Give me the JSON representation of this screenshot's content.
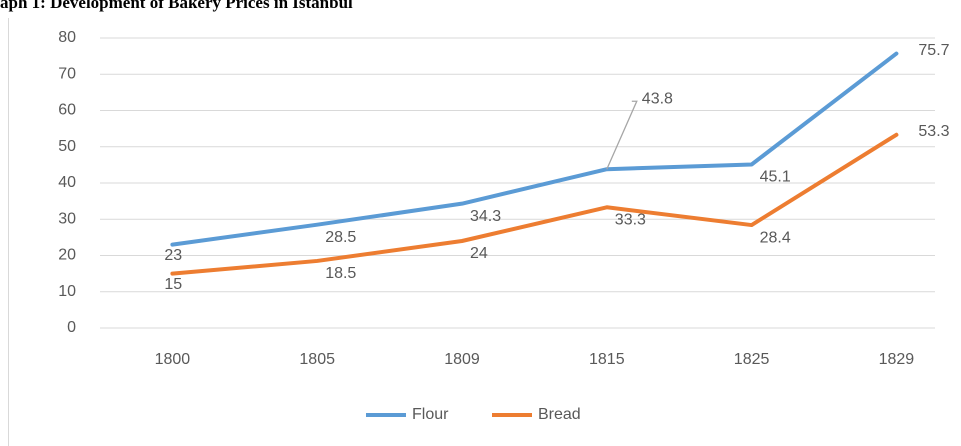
{
  "chart_data": {
    "type": "line",
    "title": "aph 1: Development of Bakery Prices in Istanbul",
    "categories": [
      "1800",
      "1805",
      "1809",
      "1815",
      "1825",
      "1829"
    ],
    "series": [
      {
        "name": "Flour",
        "color": "#5b9bd5",
        "values": [
          23,
          28.5,
          34.3,
          43.8,
          45.1,
          75.7
        ]
      },
      {
        "name": "Bread",
        "color": "#ed7d31",
        "values": [
          15,
          18.5,
          24,
          33.3,
          28.4,
          53.3
        ]
      }
    ],
    "ylim": [
      0,
      80
    ],
    "yticks": [
      0,
      10,
      20,
      30,
      40,
      50,
      60,
      70,
      80
    ],
    "grid": true,
    "legend": "bottom"
  }
}
